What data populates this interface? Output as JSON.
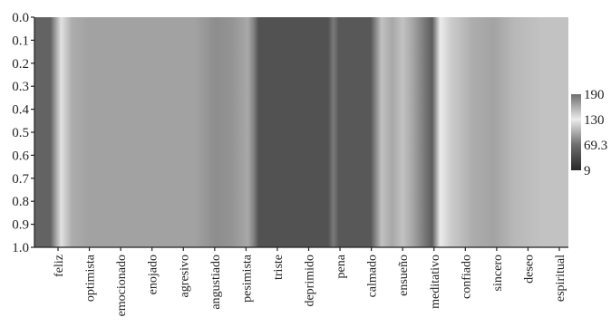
{
  "chart_data": {
    "type": "heatmap",
    "title": "",
    "xlabel": "",
    "ylabel": "",
    "y_ticks": [
      "0.0",
      "0.1",
      "0.2",
      "0.3",
      "0.4",
      "0.5",
      "0.6",
      "0.7",
      "0.8",
      "0.9",
      "1.0"
    ],
    "categories": [
      "feliz",
      "optimista",
      "emocionado",
      "enojado",
      "agresivo",
      "angustiado",
      "pesimista",
      "triste",
      "deprimido",
      "pena",
      "calmado",
      "ensueño",
      "meditativo",
      "confiado",
      "sincero",
      "deseo",
      "espiritual"
    ],
    "colorbar": {
      "ticks": [
        "190",
        "130",
        "69.3",
        "9"
      ],
      "range": [
        9,
        190
      ],
      "colormap": "grayscale (low = dark, high = light)"
    },
    "value_profile_along_x": [
      {
        "x": 0.0,
        "value": 60
      },
      {
        "x": 0.03,
        "value": 60
      },
      {
        "x": 0.05,
        "value": 135
      },
      {
        "x": 0.07,
        "value": 160
      },
      {
        "x": 0.1,
        "value": 165
      },
      {
        "x": 0.3,
        "value": 165
      },
      {
        "x": 0.34,
        "value": 175
      },
      {
        "x": 0.37,
        "value": 172
      },
      {
        "x": 0.4,
        "value": 162
      },
      {
        "x": 0.41,
        "value": 80
      },
      {
        "x": 0.42,
        "value": 45
      },
      {
        "x": 0.55,
        "value": 45
      },
      {
        "x": 0.56,
        "value": 75
      },
      {
        "x": 0.57,
        "value": 50
      },
      {
        "x": 0.63,
        "value": 50
      },
      {
        "x": 0.65,
        "value": 150
      },
      {
        "x": 0.67,
        "value": 162
      },
      {
        "x": 0.69,
        "value": 110
      },
      {
        "x": 0.71,
        "value": 95
      },
      {
        "x": 0.73,
        "value": 75
      },
      {
        "x": 0.745,
        "value": 55
      },
      {
        "x": 0.76,
        "value": 130
      },
      {
        "x": 0.78,
        "value": 115
      },
      {
        "x": 0.82,
        "value": 100
      },
      {
        "x": 0.86,
        "value": 95
      },
      {
        "x": 0.9,
        "value": 105
      },
      {
        "x": 0.95,
        "value": 110
      },
      {
        "x": 1.0,
        "value": 110
      }
    ],
    "colorbar_scale": [
      {
        "value": 9,
        "gray": 40
      },
      {
        "value": 69.3,
        "gray": 110
      },
      {
        "value": 130,
        "gray": 235
      },
      {
        "value": 190,
        "gray": 110
      }
    ]
  }
}
